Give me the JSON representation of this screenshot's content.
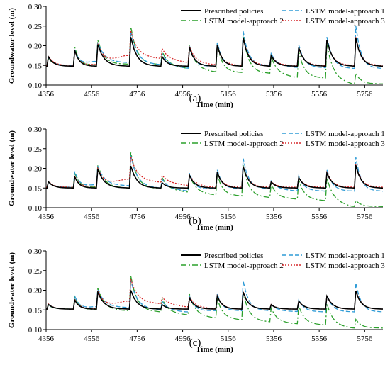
{
  "chart_data": [
    {
      "type": "line",
      "panel_label": "(a)",
      "xlabel": "Time (min)",
      "ylabel": "Groundwater level (m)",
      "xlim": [
        4356,
        5836
      ],
      "ylim": [
        0.1,
        0.3
      ],
      "xticks": [
        "4356",
        "4556",
        "4756",
        "4956",
        "5156",
        "5356",
        "5556",
        "5756"
      ],
      "yticks": [
        "0.10",
        "0.15",
        "0.20",
        "0.25",
        "0.30"
      ],
      "legend": [
        "Prescribed policies",
        "LSTM model-approach 1",
        "LSTM model-approach 2",
        "LSTM model-approach 3"
      ],
      "legend_position": "top-right",
      "peaks": [
        {
          "t": 4366,
          "prescribed": 0.172,
          "a1": 0.17,
          "a2": 0.168,
          "a3": 0.174
        },
        {
          "t": 4482,
          "prescribed": 0.188,
          "a1": 0.19,
          "a2": 0.196,
          "a3": 0.186
        },
        {
          "t": 4583,
          "prescribed": 0.203,
          "a1": 0.208,
          "a2": 0.214,
          "a3": 0.205
        },
        {
          "t": 4728,
          "prescribed": 0.222,
          "a1": 0.236,
          "a2": 0.248,
          "a3": 0.238
        },
        {
          "t": 4866,
          "prescribed": 0.172,
          "a1": 0.18,
          "a2": 0.185,
          "a3": 0.192
        },
        {
          "t": 4986,
          "prescribed": 0.195,
          "a1": 0.2,
          "a2": 0.202,
          "a3": 0.198
        },
        {
          "t": 5108,
          "prescribed": 0.202,
          "a1": 0.208,
          "a2": 0.203,
          "a3": 0.2
        },
        {
          "t": 5222,
          "prescribed": 0.22,
          "a1": 0.237,
          "a2": 0.228,
          "a3": 0.222
        },
        {
          "t": 5345,
          "prescribed": 0.175,
          "a1": 0.18,
          "a2": 0.172,
          "a3": 0.176
        },
        {
          "t": 5466,
          "prescribed": 0.195,
          "a1": 0.202,
          "a2": 0.185,
          "a3": 0.193
        },
        {
          "t": 5590,
          "prescribed": 0.215,
          "a1": 0.222,
          "a2": 0.205,
          "a3": 0.214
        },
        {
          "t": 5717,
          "prescribed": 0.22,
          "a1": 0.25,
          "a2": 0.13,
          "a3": 0.222
        }
      ],
      "base": {
        "prescribed": 0.148,
        "a1": [
          0.15,
          0.15,
          0.16,
          0.157,
          0.152,
          0.143,
          0.148,
          0.148,
          0.15,
          0.145,
          0.144,
          0.142
        ],
        "a2": [
          0.15,
          0.15,
          0.151,
          0.153,
          0.152,
          0.143,
          0.134,
          0.132,
          0.13,
          0.12,
          0.118,
          0.103
        ],
        "a3": [
          0.15,
          0.15,
          0.152,
          0.175,
          0.168,
          0.158,
          0.152,
          0.15,
          0.15,
          0.15,
          0.15,
          0.15
        ]
      }
    },
    {
      "type": "line",
      "panel_label": "(b)",
      "xlabel": "Time (min)",
      "ylabel": "Groundwater level (m)",
      "xlim": [
        4356,
        5836
      ],
      "ylim": [
        0.1,
        0.3
      ],
      "xticks": [
        "4356",
        "4556",
        "4756",
        "4956",
        "5156",
        "5356",
        "5556",
        "5756"
      ],
      "yticks": [
        "0.10",
        "0.15",
        "0.20",
        "0.25",
        "0.30"
      ],
      "legend": [
        "Prescribed policies",
        "LSTM model-approach 1",
        "LSTM model-approach 2",
        "LSTM model-approach 3"
      ],
      "legend_position": "top-right",
      "peaks": [
        {
          "t": 4366,
          "prescribed": 0.166,
          "a1": 0.165,
          "a2": 0.164,
          "a3": 0.167
        },
        {
          "t": 4482,
          "prescribed": 0.178,
          "a1": 0.192,
          "a2": 0.188,
          "a3": 0.18
        },
        {
          "t": 4583,
          "prescribed": 0.198,
          "a1": 0.206,
          "a2": 0.208,
          "a3": 0.2
        },
        {
          "t": 4728,
          "prescribed": 0.206,
          "a1": 0.232,
          "a2": 0.24,
          "a3": 0.23
        },
        {
          "t": 4866,
          "prescribed": 0.163,
          "a1": 0.172,
          "a2": 0.176,
          "a3": 0.182
        },
        {
          "t": 4986,
          "prescribed": 0.182,
          "a1": 0.188,
          "a2": 0.186,
          "a3": 0.184
        },
        {
          "t": 5108,
          "prescribed": 0.19,
          "a1": 0.196,
          "a2": 0.186,
          "a3": 0.19
        },
        {
          "t": 5222,
          "prescribed": 0.205,
          "a1": 0.225,
          "a2": 0.208,
          "a3": 0.205
        },
        {
          "t": 5345,
          "prescribed": 0.165,
          "a1": 0.168,
          "a2": 0.16,
          "a3": 0.166
        },
        {
          "t": 5466,
          "prescribed": 0.176,
          "a1": 0.18,
          "a2": 0.17,
          "a3": 0.176
        },
        {
          "t": 5590,
          "prescribed": 0.188,
          "a1": 0.196,
          "a2": 0.176,
          "a3": 0.19
        },
        {
          "t": 5717,
          "prescribed": 0.208,
          "a1": 0.228,
          "a2": 0.118,
          "a3": 0.21
        }
      ],
      "base": {
        "prescribed": 0.15,
        "a1": [
          0.152,
          0.152,
          0.158,
          0.156,
          0.15,
          0.143,
          0.148,
          0.148,
          0.148,
          0.143,
          0.142,
          0.142
        ],
        "a2": [
          0.152,
          0.152,
          0.152,
          0.15,
          0.148,
          0.14,
          0.133,
          0.13,
          0.126,
          0.122,
          0.118,
          0.103
        ],
        "a3": [
          0.152,
          0.152,
          0.154,
          0.172,
          0.165,
          0.157,
          0.152,
          0.152,
          0.152,
          0.152,
          0.152,
          0.152
        ]
      }
    },
    {
      "type": "line",
      "panel_label": "(c)",
      "xlabel": "Time (min)",
      "ylabel": "Groundwater level (m)",
      "xlim": [
        4356,
        5836
      ],
      "ylim": [
        0.1,
        0.3
      ],
      "xticks": [
        "4356",
        "4556",
        "4756",
        "4956",
        "5156",
        "5356",
        "5556",
        "5756"
      ],
      "yticks": [
        "0.10",
        "0.15",
        "0.20",
        "0.25",
        "0.30"
      ],
      "legend": [
        "Prescribed policies",
        "LSTM model-approach 1",
        "LSTM model-approach 2",
        "LSTM model-approach 3"
      ],
      "legend_position": "top-right",
      "peaks": [
        {
          "t": 4366,
          "prescribed": 0.164,
          "a1": 0.163,
          "a2": 0.162,
          "a3": 0.165
        },
        {
          "t": 4482,
          "prescribed": 0.175,
          "a1": 0.185,
          "a2": 0.183,
          "a3": 0.177
        },
        {
          "t": 4583,
          "prescribed": 0.195,
          "a1": 0.202,
          "a2": 0.205,
          "a3": 0.198
        },
        {
          "t": 4728,
          "prescribed": 0.2,
          "a1": 0.225,
          "a2": 0.236,
          "a3": 0.228
        },
        {
          "t": 4866,
          "prescribed": 0.163,
          "a1": 0.172,
          "a2": 0.178,
          "a3": 0.182
        },
        {
          "t": 4986,
          "prescribed": 0.18,
          "a1": 0.185,
          "a2": 0.19,
          "a3": 0.183
        },
        {
          "t": 5108,
          "prescribed": 0.185,
          "a1": 0.19,
          "a2": 0.18,
          "a3": 0.186
        },
        {
          "t": 5222,
          "prescribed": 0.195,
          "a1": 0.224,
          "a2": 0.196,
          "a3": 0.196
        },
        {
          "t": 5345,
          "prescribed": 0.163,
          "a1": 0.165,
          "a2": 0.155,
          "a3": 0.164
        },
        {
          "t": 5466,
          "prescribed": 0.172,
          "a1": 0.175,
          "a2": 0.16,
          "a3": 0.172
        },
        {
          "t": 5590,
          "prescribed": 0.185,
          "a1": 0.188,
          "a2": 0.166,
          "a3": 0.186
        },
        {
          "t": 5717,
          "prescribed": 0.198,
          "a1": 0.218,
          "a2": 0.126,
          "a3": 0.2
        }
      ],
      "base": {
        "prescribed": 0.152,
        "a1": [
          0.152,
          0.152,
          0.158,
          0.156,
          0.15,
          0.145,
          0.148,
          0.148,
          0.148,
          0.146,
          0.145,
          0.145
        ],
        "a2": [
          0.152,
          0.152,
          0.15,
          0.148,
          0.145,
          0.138,
          0.13,
          0.125,
          0.12,
          0.115,
          0.112,
          0.104
        ],
        "a3": [
          0.152,
          0.152,
          0.154,
          0.172,
          0.166,
          0.158,
          0.153,
          0.152,
          0.152,
          0.152,
          0.152,
          0.152
        ]
      }
    }
  ],
  "series_styles": {
    "prescribed": {
      "color": "#000000"
    },
    "a1": {
      "color": "#2e9bd6"
    },
    "a2": {
      "color": "#2ca02c"
    },
    "a3": {
      "color": "#d62728"
    }
  }
}
